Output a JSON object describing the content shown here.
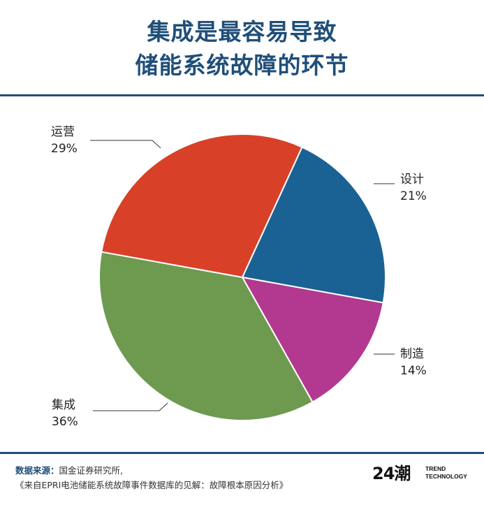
{
  "header": {
    "title_line1": "集成是最容易导致",
    "title_line2": "储能系统故障的环节"
  },
  "chart_data": {
    "type": "pie",
    "title": "集成是最容易导致储能系统故障的环节",
    "slices": [
      {
        "label": "设计",
        "value": 21,
        "value_label": "21%",
        "color": "#1a6293"
      },
      {
        "label": "制造",
        "value": 14,
        "value_label": "14%",
        "color": "#b2398f"
      },
      {
        "label": "集成",
        "value": 36,
        "value_label": "36%",
        "color": "#6e9a50"
      },
      {
        "label": "运营",
        "value": 29,
        "value_label": "29%",
        "color": "#d84128"
      }
    ]
  },
  "footer": {
    "source_label": "数据来源：",
    "source_line1": "国金证券研究所,",
    "source_line2": "《来自EPRI电池储能系统故障事件数据库的见解：故障根本原因分析》"
  },
  "brand": {
    "mark": "24潮",
    "line1": "TREND",
    "line2": "TECHNOLOGY"
  },
  "colors": {
    "accent": "#1f4e79"
  }
}
